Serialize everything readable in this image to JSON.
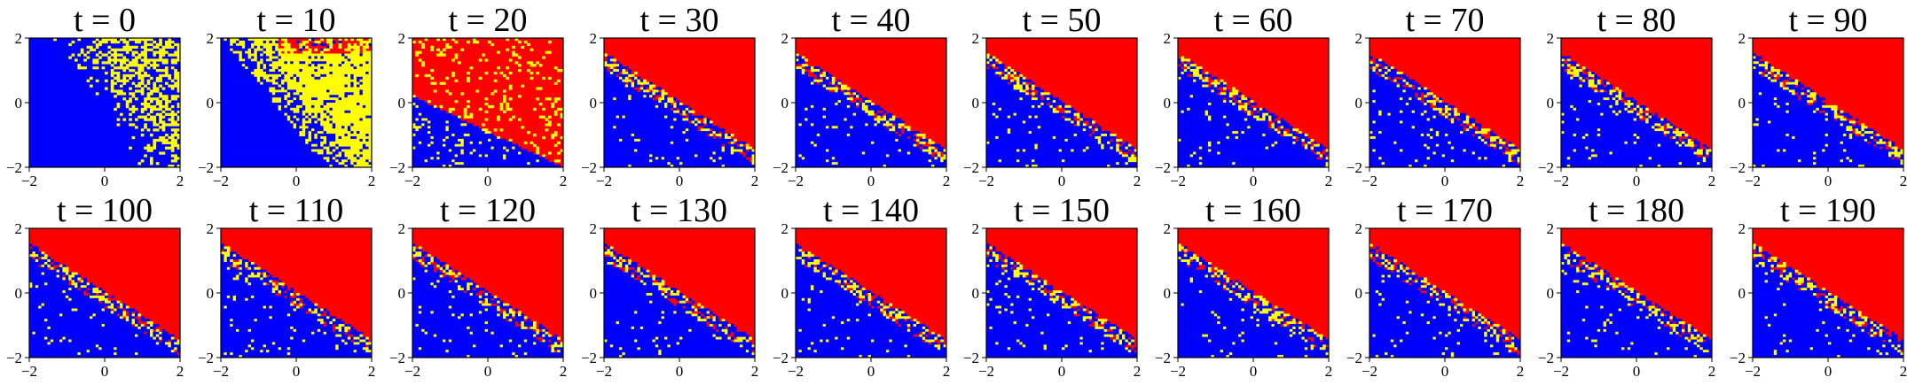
{
  "chart_data": {
    "type": "heatmap",
    "layout": {
      "rows": 2,
      "cols": 10
    },
    "colors": {
      "region_a": "#0000ff",
      "region_b": "#ff0000",
      "boundary_noise": "#ffff00"
    },
    "panels": [
      {
        "title": "t = 0",
        "t": 0
      },
      {
        "title": "t = 10",
        "t": 10
      },
      {
        "title": "t = 20",
        "t": 20
      },
      {
        "title": "t = 30",
        "t": 30
      },
      {
        "title": "t = 40",
        "t": 40
      },
      {
        "title": "t = 50",
        "t": 50
      },
      {
        "title": "t = 60",
        "t": 60
      },
      {
        "title": "t = 70",
        "t": 70
      },
      {
        "title": "t = 80",
        "t": 80
      },
      {
        "title": "t = 90",
        "t": 90
      },
      {
        "title": "t = 100",
        "t": 100
      },
      {
        "title": "t = 110",
        "t": 110
      },
      {
        "title": "t = 120",
        "t": 120
      },
      {
        "title": "t = 130",
        "t": 130
      },
      {
        "title": "t = 140",
        "t": 140
      },
      {
        "title": "t = 150",
        "t": 150
      },
      {
        "title": "t = 160",
        "t": 160
      },
      {
        "title": "t = 170",
        "t": 170
      },
      {
        "title": "t = 180",
        "t": 180
      },
      {
        "title": "t = 190",
        "t": 190
      }
    ],
    "xlim": [
      -2,
      2
    ],
    "ylim": [
      -2,
      2
    ],
    "xticks": [
      -2,
      0,
      2
    ],
    "yticks": [
      -2,
      0,
      2
    ],
    "xtick_labels": [
      "−2",
      "0",
      "2"
    ],
    "ytick_labels": [
      "−2",
      "0",
      "2"
    ],
    "grid": false,
    "boundary": {
      "slope": -0.75,
      "intercept": -0.2
    }
  }
}
